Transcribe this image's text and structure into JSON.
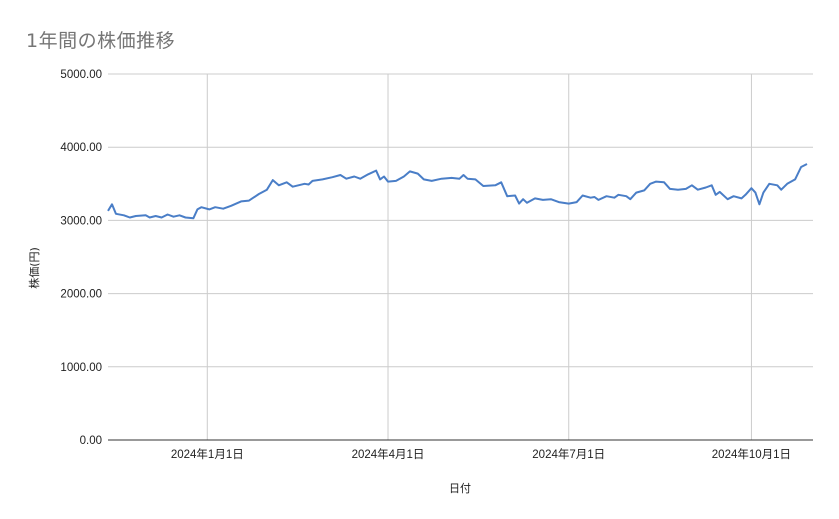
{
  "chart": {
    "title": "1年間の株価推移",
    "xlabel": "日付",
    "ylabel": "株価(円)",
    "line_color": "#4a7ec7",
    "grid_color": "#cccccc",
    "title_color": "#757575"
  },
  "chart_data": {
    "type": "line",
    "title": "1年間の株価推移",
    "xlabel": "日付",
    "ylabel": "株価(円)",
    "ylim": [
      0,
      5000
    ],
    "yticks": [
      "0.00",
      "1000.00",
      "2000.00",
      "3000.00",
      "4000.00",
      "5000.00"
    ],
    "xticks": [
      "2024年1月1日",
      "2024年4月1日",
      "2024年7月1日",
      "2024年10月1日"
    ],
    "xlim": [
      "2023-11-12",
      "2024-11-01"
    ],
    "grid": true,
    "legend": "none",
    "series": [
      {
        "name": "株価(円)",
        "points": [
          [
            "2023-11-12",
            3130
          ],
          [
            "2023-11-14",
            3220
          ],
          [
            "2023-11-16",
            3090
          ],
          [
            "2023-11-20",
            3070
          ],
          [
            "2023-11-23",
            3040
          ],
          [
            "2023-11-26",
            3060
          ],
          [
            "2023-12-01",
            3070
          ],
          [
            "2023-12-03",
            3040
          ],
          [
            "2023-12-06",
            3060
          ],
          [
            "2023-12-09",
            3040
          ],
          [
            "2023-12-12",
            3080
          ],
          [
            "2023-12-15",
            3050
          ],
          [
            "2023-12-18",
            3070
          ],
          [
            "2023-12-21",
            3040
          ],
          [
            "2023-12-25",
            3030
          ],
          [
            "2023-12-27",
            3150
          ],
          [
            "2023-12-29",
            3180
          ],
          [
            "2024-01-02",
            3150
          ],
          [
            "2024-01-05",
            3180
          ],
          [
            "2024-01-09",
            3160
          ],
          [
            "2024-01-13",
            3200
          ],
          [
            "2024-01-18",
            3260
          ],
          [
            "2024-01-22",
            3270
          ],
          [
            "2024-01-27",
            3360
          ],
          [
            "2024-01-31",
            3420
          ],
          [
            "2024-02-03",
            3550
          ],
          [
            "2024-02-06",
            3480
          ],
          [
            "2024-02-10",
            3520
          ],
          [
            "2024-02-13",
            3460
          ],
          [
            "2024-02-19",
            3500
          ],
          [
            "2024-02-21",
            3490
          ],
          [
            "2024-02-23",
            3540
          ],
          [
            "2024-02-28",
            3560
          ],
          [
            "2024-03-04",
            3590
          ],
          [
            "2024-03-08",
            3620
          ],
          [
            "2024-03-11",
            3570
          ],
          [
            "2024-03-15",
            3600
          ],
          [
            "2024-03-18",
            3570
          ],
          [
            "2024-03-22",
            3630
          ],
          [
            "2024-03-26",
            3680
          ],
          [
            "2024-03-28",
            3560
          ],
          [
            "2024-03-30",
            3600
          ],
          [
            "2024-04-01",
            3530
          ],
          [
            "2024-04-05",
            3540
          ],
          [
            "2024-04-09",
            3600
          ],
          [
            "2024-04-12",
            3670
          ],
          [
            "2024-04-16",
            3640
          ],
          [
            "2024-04-19",
            3560
          ],
          [
            "2024-04-23",
            3540
          ],
          [
            "2024-04-28",
            3570
          ],
          [
            "2024-05-03",
            3580
          ],
          [
            "2024-05-07",
            3570
          ],
          [
            "2024-05-09",
            3620
          ],
          [
            "2024-05-11",
            3570
          ],
          [
            "2024-05-15",
            3560
          ],
          [
            "2024-05-19",
            3470
          ],
          [
            "2024-05-25",
            3480
          ],
          [
            "2024-05-28",
            3520
          ],
          [
            "2024-05-31",
            3330
          ],
          [
            "2024-06-04",
            3340
          ],
          [
            "2024-06-06",
            3230
          ],
          [
            "2024-06-08",
            3290
          ],
          [
            "2024-06-10",
            3240
          ],
          [
            "2024-06-14",
            3300
          ],
          [
            "2024-06-18",
            3280
          ],
          [
            "2024-06-22",
            3290
          ],
          [
            "2024-06-26",
            3250
          ],
          [
            "2024-07-01",
            3230
          ],
          [
            "2024-07-05",
            3250
          ],
          [
            "2024-07-08",
            3340
          ],
          [
            "2024-07-12",
            3310
          ],
          [
            "2024-07-14",
            3320
          ],
          [
            "2024-07-16",
            3280
          ],
          [
            "2024-07-20",
            3330
          ],
          [
            "2024-07-24",
            3310
          ],
          [
            "2024-07-26",
            3350
          ],
          [
            "2024-07-30",
            3330
          ],
          [
            "2024-08-01",
            3290
          ],
          [
            "2024-08-04",
            3380
          ],
          [
            "2024-08-08",
            3410
          ],
          [
            "2024-08-11",
            3500
          ],
          [
            "2024-08-14",
            3530
          ],
          [
            "2024-08-18",
            3520
          ],
          [
            "2024-08-21",
            3430
          ],
          [
            "2024-08-25",
            3420
          ],
          [
            "2024-08-29",
            3430
          ],
          [
            "2024-09-01",
            3480
          ],
          [
            "2024-09-04",
            3420
          ],
          [
            "2024-09-08",
            3450
          ],
          [
            "2024-09-11",
            3480
          ],
          [
            "2024-09-13",
            3350
          ],
          [
            "2024-09-15",
            3390
          ],
          [
            "2024-09-19",
            3290
          ],
          [
            "2024-09-22",
            3330
          ],
          [
            "2024-09-26",
            3300
          ],
          [
            "2024-09-28",
            3350
          ],
          [
            "2024-10-01",
            3440
          ],
          [
            "2024-10-03",
            3380
          ],
          [
            "2024-10-05",
            3220
          ],
          [
            "2024-10-07",
            3380
          ],
          [
            "2024-10-10",
            3500
          ],
          [
            "2024-10-14",
            3480
          ],
          [
            "2024-10-16",
            3420
          ],
          [
            "2024-10-19",
            3500
          ],
          [
            "2024-10-23",
            3560
          ],
          [
            "2024-10-26",
            3730
          ],
          [
            "2024-10-29",
            3770
          ]
        ]
      }
    ]
  }
}
